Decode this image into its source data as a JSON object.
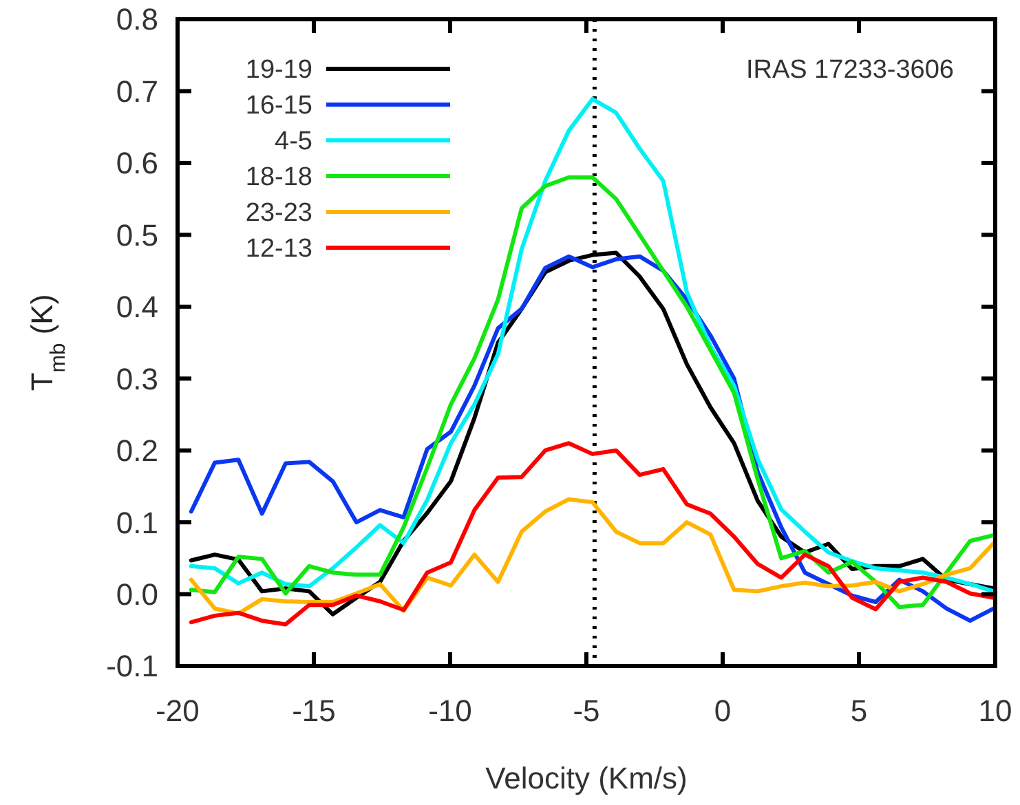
{
  "chart_data": {
    "type": "line",
    "xlabel": "Velocity (Km/s)",
    "ylabel": "T$_{mb}$ (K)",
    "annotations": [
      "IRAS 17233-3606"
    ],
    "x": [
      -19.5,
      -18.634,
      -17.768,
      -16.902,
      -16.036,
      -15.17,
      -14.304,
      -13.438,
      -12.572,
      -11.706,
      -10.84,
      -9.974,
      -9.108,
      -8.242,
      -7.376,
      -6.51,
      -5.644,
      -4.778,
      -3.912,
      -3.046,
      -2.18,
      -1.314,
      -0.448,
      0.418,
      1.284,
      2.15,
      3.016,
      3.882,
      4.748,
      5.614,
      6.48,
      7.346,
      8.212,
      9.078,
      9.944
    ],
    "xlim": [
      -20,
      10
    ],
    "xticks": [
      -20,
      -15,
      -10,
      -5,
      0,
      5,
      10
    ],
    "ylim": [
      -0.1,
      0.8
    ],
    "yticks": [
      -0.1,
      {
        "value": 0,
        "label": "0.0"
      },
      0.1,
      0.2,
      0.3,
      0.4,
      0.5,
      0.6,
      0.7,
      0.8
    ],
    "legend": "top left",
    "line_style": "solid",
    "marker": "none",
    "grid": false,
    "ref_lines": [
      {
        "axis": "x",
        "value": -4.7,
        "line_style": "dotted",
        "color": "#000000"
      }
    ],
    "series": [
      {
        "name": "19-19",
        "color": "#000000",
        "values": [
          0.047,
          0.055,
          0.048,
          0.004,
          0.008,
          0.004,
          -0.028,
          -0.005,
          0.017,
          0.074,
          0.113,
          0.157,
          0.245,
          0.35,
          0.397,
          0.448,
          0.464,
          0.472,
          0.475,
          0.442,
          0.397,
          0.32,
          0.26,
          0.21,
          0.13,
          0.08,
          0.058,
          0.07,
          0.035,
          0.039,
          0.039,
          0.049,
          0.02,
          0.014,
          0.008
        ]
      },
      {
        "name": "16-15",
        "color": "#0a37f0",
        "values": [
          0.115,
          0.183,
          0.187,
          0.112,
          0.182,
          0.184,
          0.157,
          0.1,
          0.117,
          0.107,
          0.202,
          0.226,
          0.29,
          0.37,
          0.397,
          0.454,
          0.47,
          0.455,
          0.466,
          0.47,
          0.45,
          0.41,
          0.36,
          0.3,
          0.17,
          0.093,
          0.03,
          0.014,
          -0.002,
          -0.011,
          0.02,
          0.004,
          -0.02,
          -0.037,
          -0.02
        ]
      },
      {
        "name": "4-5",
        "color": "#00f0f5",
        "values": [
          0.039,
          0.036,
          0.015,
          0.03,
          0.014,
          0.011,
          0.036,
          0.065,
          0.096,
          0.071,
          0.131,
          0.21,
          0.264,
          0.334,
          0.48,
          0.575,
          0.645,
          0.689,
          0.67,
          0.62,
          0.575,
          0.42,
          0.345,
          0.29,
          0.188,
          0.118,
          0.087,
          0.058,
          0.046,
          0.036,
          0.033,
          0.03,
          0.023,
          0.014,
          0.004
        ]
      },
      {
        "name": "18-18",
        "color": "#14e614",
        "values": [
          0.006,
          0.003,
          0.052,
          0.049,
          0.001,
          0.039,
          0.03,
          0.027,
          0.027,
          0.093,
          0.176,
          0.264,
          0.328,
          0.41,
          0.537,
          0.568,
          0.58,
          0.58,
          0.55,
          0.5,
          0.45,
          0.4,
          0.34,
          0.28,
          0.16,
          0.05,
          0.06,
          0.03,
          0.045,
          0.017,
          -0.018,
          -0.015,
          0.03,
          0.074,
          0.082
        ]
      },
      {
        "name": "23-23",
        "color": "#ffb400",
        "values": [
          0.02,
          -0.02,
          -0.027,
          -0.007,
          -0.01,
          -0.011,
          -0.011,
          0.001,
          0.014,
          -0.023,
          0.023,
          0.012,
          0.055,
          0.017,
          0.087,
          0.115,
          0.132,
          0.128,
          0.087,
          0.071,
          0.071,
          0.1,
          0.083,
          0.006,
          0.004,
          0.011,
          0.016,
          0.011,
          0.012,
          0.017,
          0.004,
          0.014,
          0.027,
          0.036,
          0.071
        ]
      },
      {
        "name": "12-13",
        "color": "#ff0000",
        "values": [
          -0.039,
          -0.03,
          -0.026,
          -0.037,
          -0.042,
          -0.015,
          -0.015,
          -0.002,
          -0.01,
          -0.022,
          0.03,
          0.044,
          0.117,
          0.162,
          0.163,
          0.2,
          0.21,
          0.195,
          0.2,
          0.166,
          0.174,
          0.125,
          0.112,
          0.08,
          0.042,
          0.023,
          0.055,
          0.039,
          -0.005,
          -0.021,
          0.017,
          0.023,
          0.017,
          0.001,
          -0.005
        ]
      }
    ]
  }
}
